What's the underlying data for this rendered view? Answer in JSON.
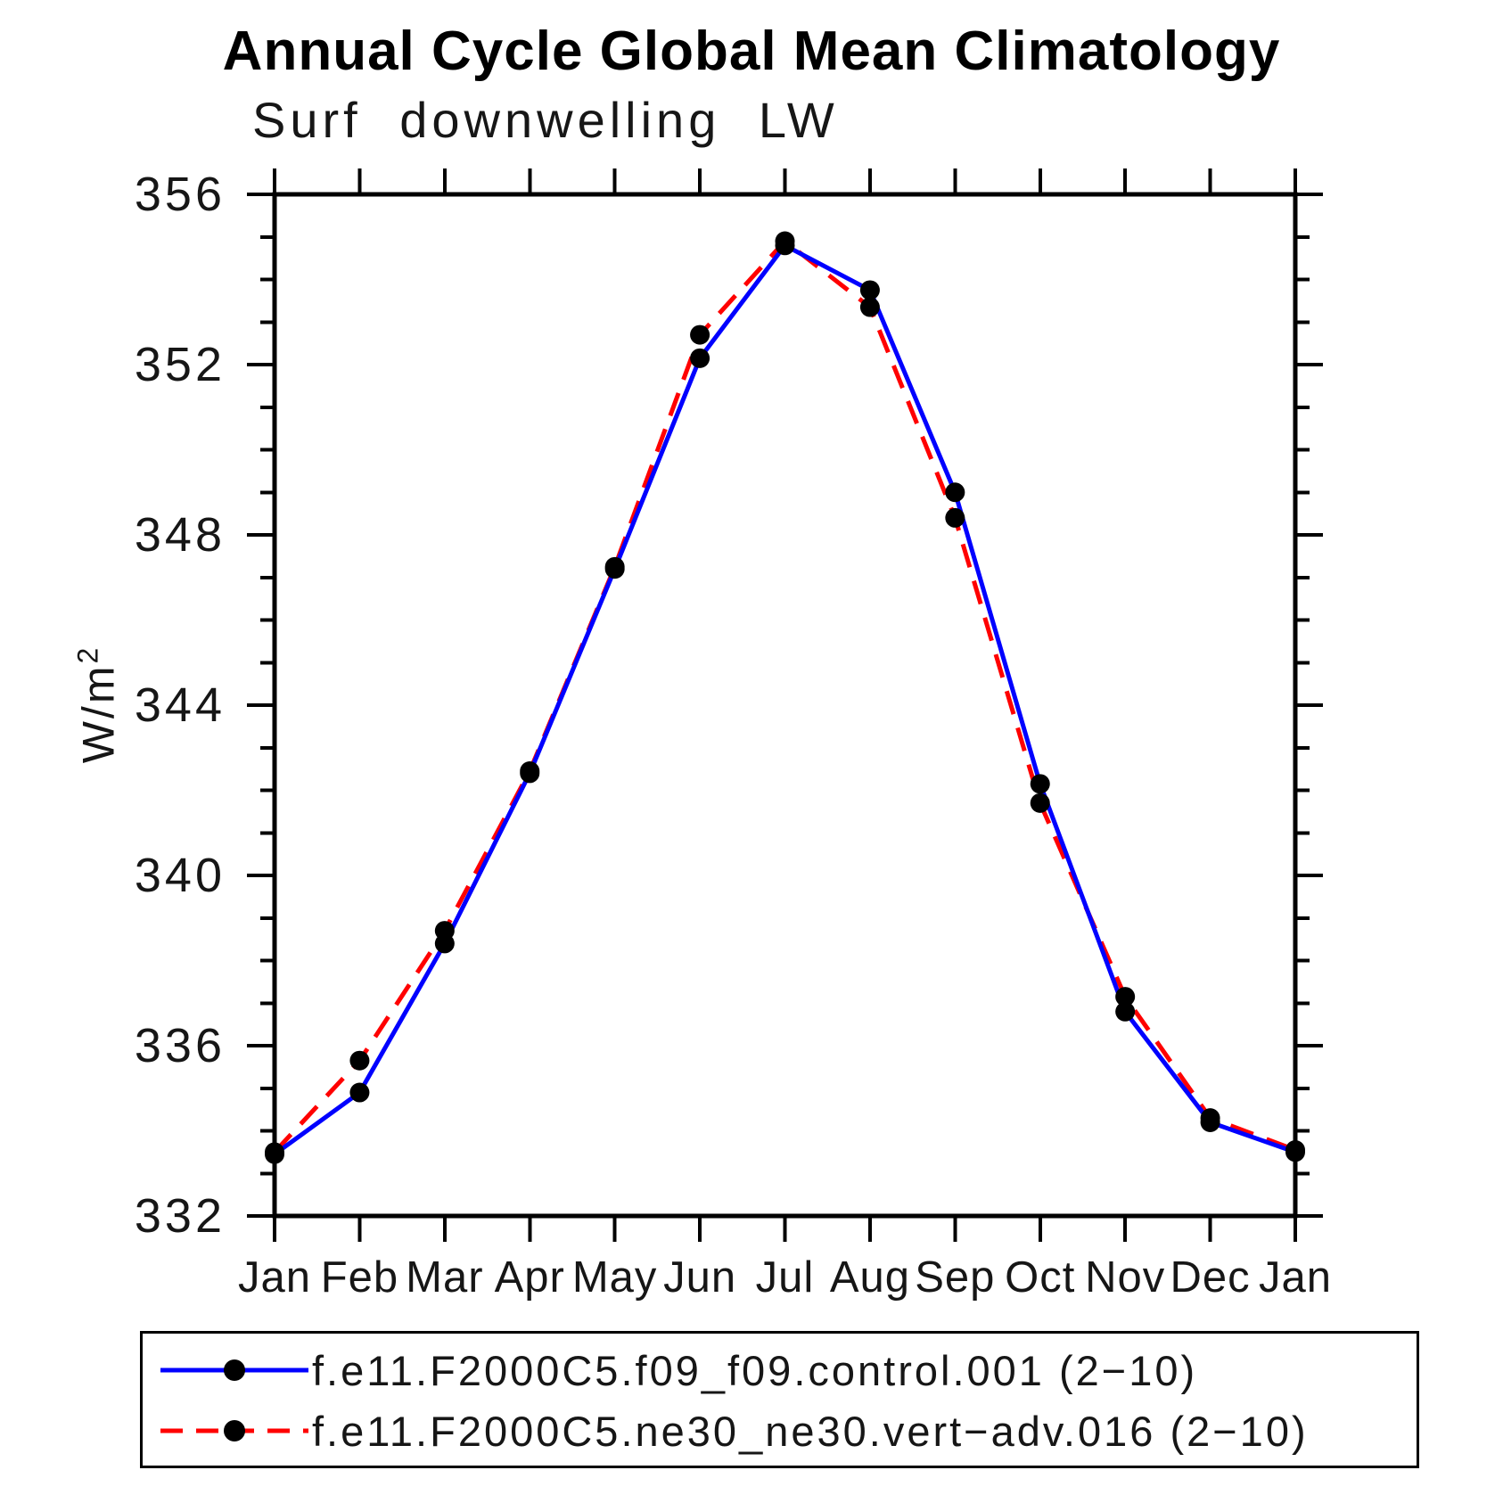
{
  "title": "Annual Cycle Global Mean Climatology",
  "subtitle": "Surf downwelling LW",
  "y_axis": {
    "label_base": "W/m",
    "label_exponent": "2",
    "tick_labels": [
      332,
      336,
      340,
      344,
      348,
      352,
      356
    ]
  },
  "chart_data": {
    "type": "line",
    "title": "Annual Cycle Global Mean Climatology",
    "subtitle": "Surf downwelling LW",
    "xlabel": "",
    "ylabel": "W/m2",
    "categories": [
      "Jan",
      "Feb",
      "Mar",
      "Apr",
      "May",
      "Jun",
      "Jul",
      "Aug",
      "Sep",
      "Oct",
      "Nov",
      "Dec",
      "Jan"
    ],
    "ylim": [
      332,
      356
    ],
    "ytick_major_step": 4,
    "ytick_minor_step": 1,
    "grid": false,
    "legend_position": "bottom",
    "marker_color": "#000000",
    "series": [
      {
        "name": "f.e11.F2000C5.f09_f09.control.001 (2−10)",
        "color": "#0000ff",
        "style": "solid",
        "marker": "circle",
        "values": [
          333.45,
          334.9,
          338.4,
          342.4,
          347.2,
          352.15,
          354.8,
          353.75,
          349.0,
          342.15,
          336.8,
          334.2,
          333.5
        ]
      },
      {
        "name": "f.e11.F2000C5.ne30_ne30.vert−adv.016 (2−10)",
        "color": "#ff0000",
        "style": "dashed",
        "marker": "circle",
        "values": [
          333.5,
          335.65,
          338.7,
          342.45,
          347.25,
          352.7,
          354.9,
          353.35,
          348.4,
          341.7,
          337.15,
          334.3,
          333.55
        ]
      }
    ]
  }
}
